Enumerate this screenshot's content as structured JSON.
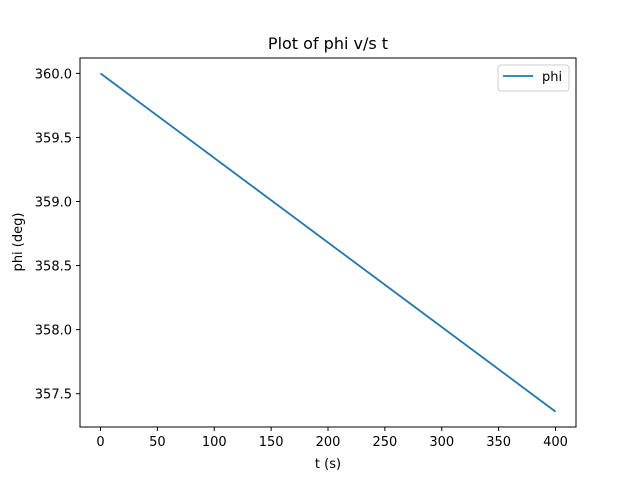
{
  "chart_data": {
    "type": "line",
    "title": "Plot of phi v/s t",
    "xlabel": "t (s)",
    "ylabel": "phi (deg)",
    "xlim": [
      -18,
      418
    ],
    "ylim": [
      357.24,
      360.12
    ],
    "xticks": [
      0,
      50,
      100,
      150,
      200,
      250,
      300,
      350,
      400
    ],
    "xtick_labels": [
      "0",
      "50",
      "100",
      "150",
      "200",
      "250",
      "300",
      "350",
      "400"
    ],
    "yticks": [
      357.5,
      358.0,
      358.5,
      359.0,
      359.5,
      360.0
    ],
    "ytick_labels": [
      "357.5",
      "358.0",
      "358.5",
      "359.0",
      "359.5",
      "360.0"
    ],
    "grid": false,
    "legend_position": "top-right",
    "series": [
      {
        "name": "phi",
        "color": "#1f77b4",
        "x": [
          0,
          400
        ],
        "y": [
          360.0,
          357.36
        ]
      }
    ]
  }
}
